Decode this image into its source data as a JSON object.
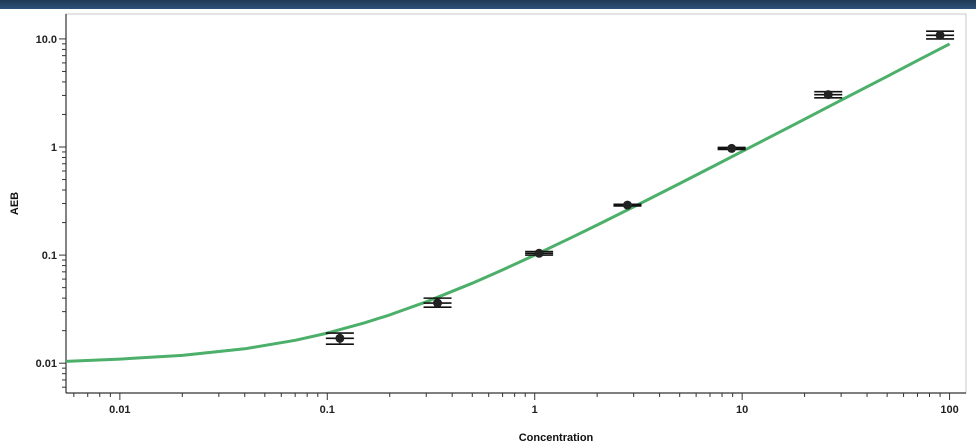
{
  "chart_data": {
    "type": "scatter",
    "xlabel": "Concentration",
    "ylabel": "AEB",
    "x_scale": "log",
    "y_scale": "log",
    "xlim": [
      0.0055,
      120
    ],
    "ylim": [
      0.0053,
      17
    ],
    "x_ticks": [
      {
        "value": 0.01,
        "label": "0.01"
      },
      {
        "value": 0.1,
        "label": "0.1"
      },
      {
        "value": 1,
        "label": "1"
      },
      {
        "value": 10,
        "label": "10"
      },
      {
        "value": 100,
        "label": "100"
      }
    ],
    "y_ticks": [
      {
        "value": 0.01,
        "label": "0.01"
      },
      {
        "value": 0.1,
        "label": "0.1"
      },
      {
        "value": 1,
        "label": "1"
      },
      {
        "value": 10,
        "label": "10.0"
      }
    ],
    "grid": false,
    "points": [
      {
        "x": 0.115,
        "y": 0.017,
        "ylow": 0.015,
        "yhigh": 0.019
      },
      {
        "x": 0.34,
        "y": 0.036,
        "ylow": 0.033,
        "yhigh": 0.04
      },
      {
        "x": 1.05,
        "y": 0.104,
        "ylow": 0.1,
        "yhigh": 0.108
      },
      {
        "x": 2.8,
        "y": 0.29,
        "ylow": 0.285,
        "yhigh": 0.295
      },
      {
        "x": 8.9,
        "y": 0.97,
        "ylow": 0.95,
        "yhigh": 0.99
      },
      {
        "x": 26,
        "y": 3.05,
        "ylow": 2.85,
        "yhigh": 3.25
      },
      {
        "x": 90,
        "y": 10.8,
        "ylow": 10.0,
        "yhigh": 11.8
      }
    ],
    "fit_curve": {
      "color": "#4caf6a",
      "x": [
        0.0055,
        0.01,
        0.02,
        0.04,
        0.07,
        0.1,
        0.15,
        0.2,
        0.3,
        0.5,
        0.7,
        1,
        1.5,
        2,
        3,
        5,
        7,
        10,
        15,
        20,
        30,
        50,
        70,
        100
      ],
      "y": [
        0.0104,
        0.0109,
        0.0118,
        0.0136,
        0.0163,
        0.019,
        0.0235,
        0.028,
        0.037,
        0.055,
        0.073,
        0.1,
        0.145,
        0.19,
        0.28,
        0.46,
        0.64,
        0.91,
        1.36,
        1.81,
        2.71,
        4.5,
        6.3,
        9.0
      ]
    },
    "point_color": "#222222",
    "errorbar_color": "#111111"
  }
}
